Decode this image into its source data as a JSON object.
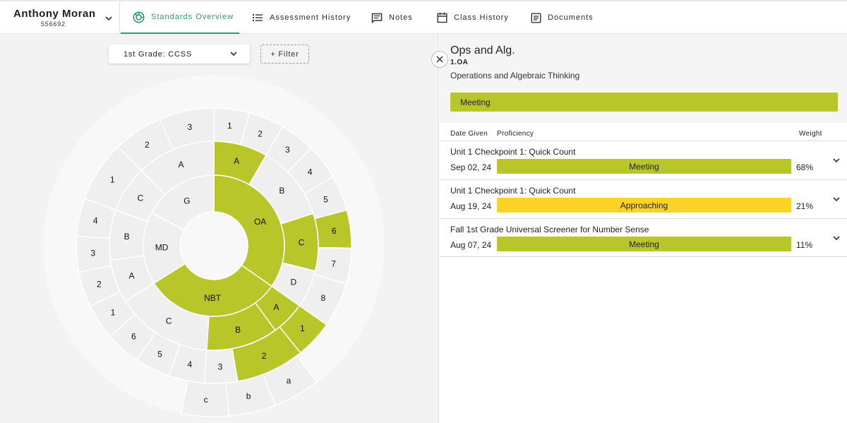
{
  "student": {
    "name": "Anthony Moran",
    "id": "556692"
  },
  "tabs": [
    {
      "label": "Standards Overview",
      "icon": "standards-icon",
      "active": true
    },
    {
      "label": "Assessment History",
      "icon": "list-icon",
      "active": false
    },
    {
      "label": "Notes",
      "icon": "notes-icon",
      "active": false
    },
    {
      "label": "Class History",
      "icon": "calendar-icon",
      "active": false
    },
    {
      "label": "Documents",
      "icon": "document-icon",
      "active": false
    }
  ],
  "filters": {
    "grade": "1st Grade: CCSS",
    "filter_label": "+ Filter"
  },
  "colors": {
    "meeting": "#b8c62a",
    "approaching": "#fcd226",
    "none": "#efefef",
    "accent": "#2f9a6e"
  },
  "sunburst": {
    "domains": [
      {
        "label": "OA",
        "status": "meeting"
      },
      {
        "label": "NBT",
        "status": "meeting"
      },
      {
        "label": "MD",
        "status": "none"
      },
      {
        "label": "G",
        "status": "none"
      }
    ],
    "clusters": [
      {
        "label": "A",
        "status": "meeting"
      },
      {
        "label": "B",
        "status": "none"
      },
      {
        "label": "C",
        "status": "meeting"
      },
      {
        "label": "D",
        "status": "none"
      },
      {
        "label": "A",
        "status": "meeting"
      },
      {
        "label": "B",
        "status": "meeting"
      },
      {
        "label": "C",
        "status": "none"
      },
      {
        "label": "A",
        "status": "none"
      },
      {
        "label": "B",
        "status": "none"
      },
      {
        "label": "C",
        "status": "none"
      },
      {
        "label": "A",
        "status": "none"
      }
    ],
    "standards": [
      {
        "label": "1",
        "status": "none"
      },
      {
        "label": "2",
        "status": "none"
      },
      {
        "label": "3",
        "status": "none"
      },
      {
        "label": "4",
        "status": "none"
      },
      {
        "label": "5",
        "status": "none"
      },
      {
        "label": "6",
        "status": "meeting"
      },
      {
        "label": "7",
        "status": "none"
      },
      {
        "label": "8",
        "status": "none"
      },
      {
        "label": "1",
        "status": "meeting"
      },
      {
        "label": "2",
        "status": "meeting"
      },
      {
        "label": "3",
        "status": "none"
      },
      {
        "label": "4",
        "status": "none"
      },
      {
        "label": "5",
        "status": "none"
      },
      {
        "label": "6",
        "status": "none"
      },
      {
        "label": "1",
        "status": "none"
      },
      {
        "label": "2",
        "status": "none"
      },
      {
        "label": "3",
        "status": "none"
      },
      {
        "label": "4",
        "status": "none"
      },
      {
        "label": "1",
        "status": "none"
      },
      {
        "label": "2",
        "status": "none"
      },
      {
        "label": "3",
        "status": "none"
      }
    ],
    "substandards": [
      {
        "label": "a",
        "status": "none"
      },
      {
        "label": "b",
        "status": "none"
      },
      {
        "label": "c",
        "status": "none"
      }
    ]
  },
  "detail": {
    "title": "Ops and Alg.",
    "code": "1.OA",
    "description": "Operations and Algebraic Thinking",
    "status": "Meeting",
    "columns": {
      "date": "Date Given",
      "proficiency": "Proficiency",
      "weight": "Weight"
    },
    "assessments": [
      {
        "name": "Unit 1 Checkpoint 1: Quick Count",
        "date": "Sep 02, 24",
        "proficiency": "Meeting",
        "status": "meeting",
        "weight": "68%"
      },
      {
        "name": "Unit 1 Checkpoint 1: Quick Count",
        "date": "Aug 19, 24",
        "proficiency": "Approaching",
        "status": "approaching",
        "weight": "21%"
      },
      {
        "name": "Fall 1st Grade Universal Screener for Number Sense",
        "date": "Aug 07, 24",
        "proficiency": "Meeting",
        "status": "meeting",
        "weight": "11%"
      }
    ]
  }
}
